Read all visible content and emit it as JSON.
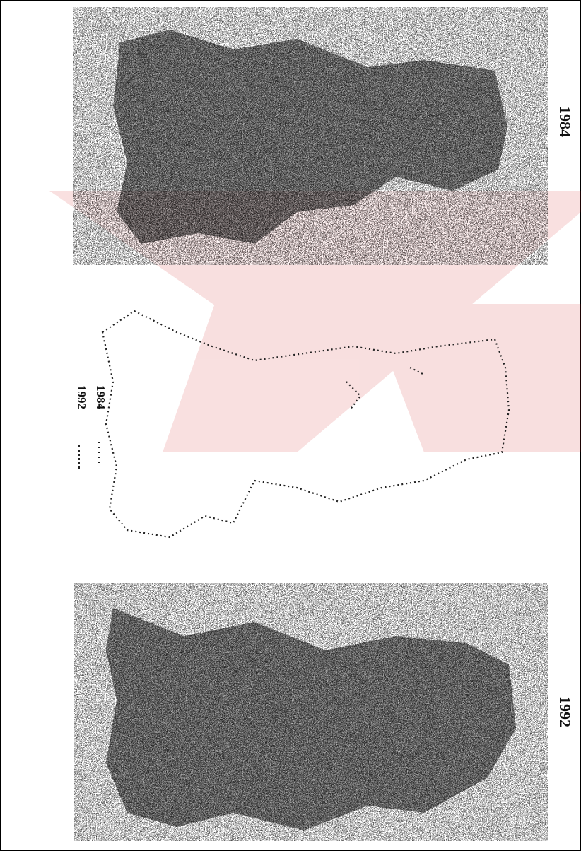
{
  "images": [
    {
      "label": "1984"
    },
    {
      "label": "1992"
    }
  ],
  "legend": {
    "items": [
      "1984",
      "1992"
    ]
  }
}
